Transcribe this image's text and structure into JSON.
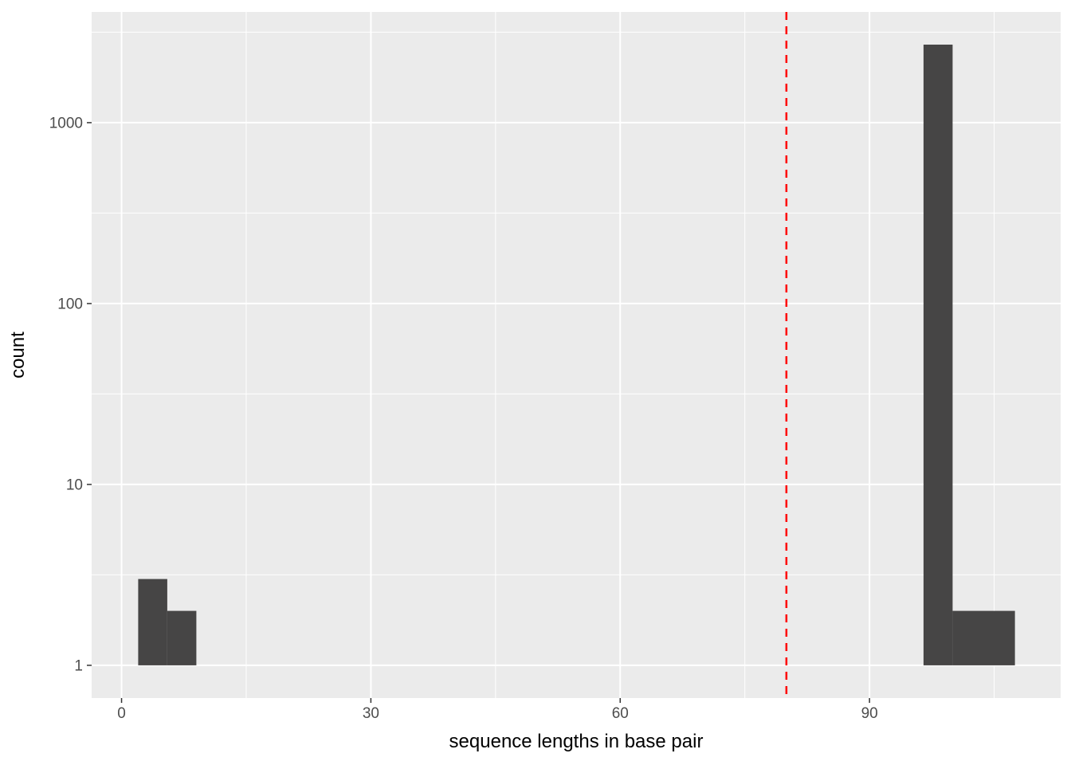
{
  "chart_data": {
    "type": "bar",
    "subtype": "histogram",
    "title": "",
    "xlabel": "sequence lengths in base pair",
    "ylabel": "count",
    "x_scale": "linear",
    "y_scale": "log10",
    "xlim": [
      -3.6,
      113.0
    ],
    "ylim_log": [
      -0.181,
      3.612
    ],
    "x_ticks": [
      0,
      30,
      60,
      90
    ],
    "x_tick_labels": [
      "0",
      "30",
      "60",
      "90"
    ],
    "x_minor_ticks": [
      15,
      45,
      75,
      105
    ],
    "y_ticks": [
      1,
      10,
      100,
      1000
    ],
    "y_tick_labels": [
      "1",
      "10",
      "100",
      "1000"
    ],
    "y_minor_ticks": [
      3.1623,
      31.623,
      316.23,
      3162.3
    ],
    "baseline_count": 1,
    "bars": [
      {
        "x0": 2.0,
        "x1": 5.5,
        "count": 3
      },
      {
        "x0": 5.5,
        "x1": 9.0,
        "count": 2
      },
      {
        "x0": 96.5,
        "x1": 100.0,
        "count": 2700
      },
      {
        "x0": 100.0,
        "x1": 107.5,
        "count": 2
      }
    ],
    "vline": {
      "x": 80,
      "color": "#FF0000",
      "style": "dashed"
    },
    "grid": true,
    "legend": "none",
    "colors": {
      "bar": "#464545",
      "panel_bg": "#EBEBEB",
      "grid_major": "#FFFFFF",
      "grid_minor": "#FFFFFF",
      "tick_mark": "#333333",
      "tick_text": "#4D4D4D",
      "axis_title_text": "#000000",
      "plot_bg": "#FFFFFF"
    }
  }
}
